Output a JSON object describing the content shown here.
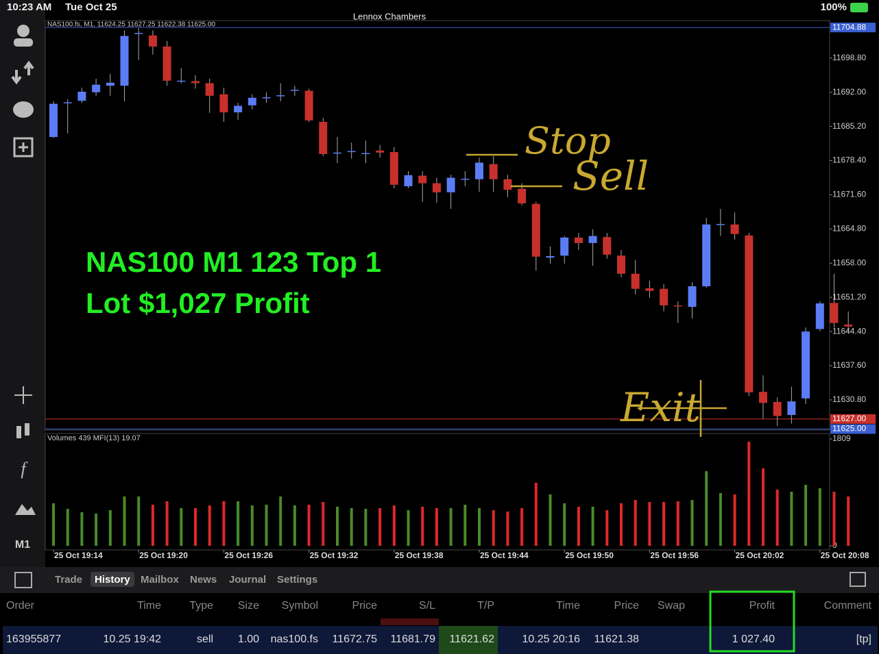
{
  "status_bar": {
    "time": "10:23 AM",
    "date": "Tue Oct 25",
    "battery": "100%"
  },
  "account": "Lennox Chambers",
  "sidebar": {
    "timeframe": "M1"
  },
  "chart_data": {
    "type": "candlestick",
    "header": "NAS100.fs, M1, 11624.25 11627.25 11622.38 11625.00",
    "categories": [
      "25 Oct 19:14",
      null,
      null,
      null,
      null,
      null,
      "25 Oct 19:20",
      null,
      null,
      null,
      null,
      null,
      "25 Oct 19:26",
      null,
      null,
      null,
      null,
      null,
      "25 Oct 19:32",
      null,
      null,
      null,
      null,
      null,
      "25 Oct 19:38",
      null,
      null,
      null,
      null,
      null,
      "25 Oct 19:44",
      null,
      null,
      null,
      null,
      null,
      "25 Oct 19:50",
      null,
      null,
      null,
      null,
      null,
      "25 Oct 19:56",
      null,
      null,
      null,
      null,
      null,
      "25 Oct 20:02",
      null,
      null,
      null,
      null,
      null,
      "25 Oct 20:08",
      null,
      null
    ],
    "open": [
      11683.1,
      11689.9,
      11690.3,
      11692.0,
      11693.3,
      11693.3,
      11703.6,
      11703.3,
      11701.1,
      11694.2,
      11694.2,
      11693.8,
      11691.6,
      11688.0,
      11689.4,
      11690.9,
      11691.3,
      11692.4,
      11692.3,
      11686.1,
      11679.9,
      11680.1,
      11679.7,
      11680.4,
      11680.1,
      11673.3,
      11675.4,
      11673.9,
      11672.1,
      11674.7,
      11674.7,
      11677.7,
      11674.7,
      11672.8,
      11669.8,
      11659.1,
      11659.5,
      11663.1,
      11662.0,
      11663.2,
      11659.5,
      11655.9,
      11653.0,
      11652.9,
      11649.6,
      11649.3,
      11653.4,
      11665.7,
      11665.7,
      11663.5,
      11632.4,
      11630.4,
      11627.8,
      11631.1,
      11644.9,
      11650.1,
      11645.8
    ],
    "high": [
      11690.2,
      11690.6,
      11692.9,
      11694.7,
      11695.7,
      11704.3,
      11704.7,
      11704.3,
      11702.2,
      11696.8,
      11695.4,
      11694.7,
      11692.9,
      11689.9,
      11691.6,
      11692.0,
      11693.8,
      11693.3,
      11692.7,
      11686.9,
      11683.1,
      11682.0,
      11682.4,
      11681.5,
      11681.1,
      11676.3,
      11676.3,
      11675.0,
      11675.6,
      11676.3,
      11679.0,
      11679.3,
      11675.6,
      11673.9,
      11670.2,
      11661.3,
      11663.4,
      11664.0,
      11664.7,
      11664.0,
      11660.6,
      11658.6,
      11654.5,
      11653.8,
      11650.4,
      11654.2,
      11667.0,
      11668.8,
      11668.1,
      11664.0,
      11635.7,
      11631.3,
      11633.4,
      11645.2,
      11650.4,
      11655.9,
      11648.4
    ],
    "low": [
      11682.9,
      11683.8,
      11689.9,
      11691.3,
      11691.3,
      11690.2,
      11698.4,
      11699.5,
      11693.3,
      11693.8,
      11692.7,
      11687.9,
      11686.1,
      11686.5,
      11688.6,
      11689.9,
      11690.2,
      11691.3,
      11686.1,
      11679.3,
      11677.9,
      11678.8,
      11677.9,
      11679.0,
      11672.9,
      11672.9,
      11670.2,
      11670.0,
      11668.8,
      11673.3,
      11672.2,
      11672.2,
      11671.1,
      11669.5,
      11656.5,
      11657.9,
      11657.9,
      11660.6,
      11657.5,
      11658.9,
      11655.2,
      11651.8,
      11651.1,
      11648.4,
      11646.1,
      11647.0,
      11653.1,
      11663.4,
      11662.7,
      11631.6,
      11627.0,
      11625.6,
      11626.1,
      11630.0,
      11644.5,
      11645.2,
      11644.3
    ],
    "close": [
      11689.7,
      11690.0,
      11692.1,
      11693.5,
      11693.9,
      11703.2,
      11703.8,
      11701.1,
      11694.3,
      11694.3,
      11693.8,
      11691.3,
      11688.0,
      11689.3,
      11690.9,
      11691.0,
      11691.4,
      11692.5,
      11686.4,
      11679.7,
      11680.0,
      11680.3,
      11679.9,
      11680.0,
      11673.6,
      11675.5,
      11673.9,
      11672.1,
      11675.0,
      11674.8,
      11678.0,
      11674.7,
      11672.6,
      11669.9,
      11659.3,
      11659.4,
      11663.1,
      11662.0,
      11663.4,
      11659.7,
      11655.9,
      11652.9,
      11652.5,
      11649.6,
      11649.5,
      11653.4,
      11665.7,
      11665.8,
      11663.8,
      11632.3,
      11630.2,
      11627.6,
      11630.5,
      11644.4,
      11650.0,
      11646.1,
      11645.4
    ],
    "up_color": "#5b7cf5",
    "down_color": "#c8302c",
    "ylim": [
      11624.8,
      11704.9
    ],
    "yticks": [
      {
        "value": 11698.8,
        "label": "11698.80"
      },
      {
        "value": 11692,
        "label": "11692.00"
      },
      {
        "value": 11685.2,
        "label": "11685.20"
      },
      {
        "value": 11678.4,
        "label": "11678.40"
      },
      {
        "value": 11671.6,
        "label": "11671.60"
      },
      {
        "value": 11664.8,
        "label": "11664.80"
      },
      {
        "value": 11658,
        "label": "11658.00"
      },
      {
        "value": 11651.2,
        "label": "11651.20"
      },
      {
        "value": 11644.4,
        "label": "11644.40"
      },
      {
        "value": 11637.6,
        "label": "11637.60"
      },
      {
        "value": 11630.8,
        "label": "11630.80"
      }
    ],
    "price_lines": [
      {
        "value": 11704.88,
        "label": "11704.88",
        "color": "#3a5fd0"
      },
      {
        "value": 11627,
        "label": "11627.00",
        "color": "#c8302c"
      },
      {
        "value": 11625,
        "label": "11625.00",
        "color": "#3a5fd0"
      }
    ]
  },
  "overlay": {
    "lines": [
      "NAS100 M1 123 Top 1",
      "Lot $1,027 Profit"
    ]
  },
  "handwriting": [
    "Stop",
    "Sell",
    "Exit"
  ],
  "volume_chart": {
    "type": "bar",
    "header": "Volumes 439 MFI(13) 19.07",
    "values": [
      720,
      626,
      568,
      545,
      603,
      835,
      835,
      696,
      754,
      638,
      638,
      684,
      754,
      754,
      684,
      696,
      835,
      684,
      696,
      742,
      661,
      638,
      626,
      638,
      684,
      603,
      661,
      638,
      638,
      696,
      638,
      603,
      580,
      638,
      1067,
      870,
      720,
      661,
      661,
      603,
      720,
      777,
      742,
      742,
      754,
      777,
      1264,
      893,
      870,
      1762,
      1310,
      951,
      916,
      1032,
      974,
      916,
      835
    ],
    "up_color": "#4a8a2a",
    "down_color": "#e02828",
    "vlim": [
      0,
      1809
    ],
    "vticks": [
      1809,
      0
    ]
  },
  "tabs": [
    "Trade",
    "History",
    "Mailbox",
    "News",
    "Journal",
    "Settings"
  ],
  "active_tab": 1,
  "table": {
    "headers": [
      "Order",
      "Time",
      "Type",
      "Size",
      "Symbol",
      "Price",
      "S/L",
      "T/P",
      "Time",
      "Price",
      "Swap",
      "Profit",
      "Comment"
    ],
    "rows": [
      [
        "163955877",
        "10.25 19:42",
        "sell",
        "1.00",
        "nas100.fs",
        "11672.75",
        "11681.79",
        "11621.62",
        "10.25 20:16",
        "11621.38",
        null,
        "1 027.40",
        "[tp]"
      ]
    ]
  }
}
